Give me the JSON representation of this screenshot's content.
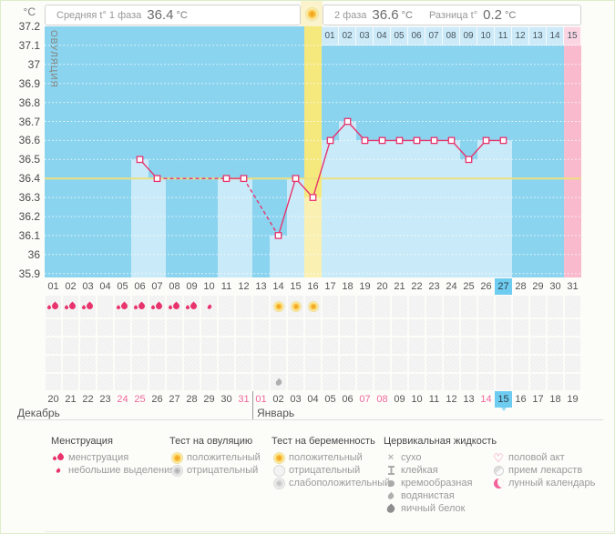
{
  "header": {
    "unit": "°C",
    "phase1": {
      "label": "Средняя t° 1 фаза",
      "value": "36.4",
      "unit": "°C"
    },
    "phase2": {
      "label": "2 фаза",
      "value": "36.6",
      "unit": "°C"
    },
    "diff": {
      "label": "Разница t°",
      "value": "0.2",
      "unit": "°C"
    },
    "ovulation_icon": "ovulation-positive-icon"
  },
  "chart_data": {
    "type": "line",
    "title": "Basal body temperature cycle chart",
    "ylabel": "°C",
    "ylim": [
      35.9,
      37.2
    ],
    "ytick_step": 0.1,
    "yticks": [
      "37.2",
      "37.1",
      "37",
      "36.9",
      "36.8",
      "36.7",
      "36.6",
      "36.5",
      "36.4",
      "36.3",
      "36.2",
      "36.1",
      "36",
      "35.9"
    ],
    "days": [
      "01",
      "02",
      "03",
      "04",
      "05",
      "06",
      "07",
      "08",
      "09",
      "10",
      "11",
      "12",
      "13",
      "14",
      "15",
      "16",
      "17",
      "18",
      "19",
      "20",
      "21",
      "22",
      "23",
      "24",
      "25",
      "26",
      "27",
      "28",
      "29",
      "30",
      "31"
    ],
    "current_cycle_day": 27,
    "ovulation_day": 16,
    "ovulation_label": "ОВУЛЯЦИЯ",
    "expected_period_day": 31,
    "coverline_temp": 36.4,
    "avg_phase1_temp": 36.4,
    "avg_phase2_temp": 36.6,
    "temp_difference": 0.2,
    "dpo_row": {
      "labels": [
        "01",
        "02",
        "03",
        "04",
        "05",
        "06",
        "07",
        "08",
        "09",
        "10",
        "11",
        "12",
        "13",
        "14",
        "15"
      ],
      "period_forecast_label": "15"
    },
    "temps": [
      {
        "day": 6,
        "t": 36.5
      },
      {
        "day": 7,
        "t": 36.4
      },
      {
        "day": 11,
        "t": 36.4
      },
      {
        "day": 12,
        "t": 36.4
      },
      {
        "day": 14,
        "t": 36.1
      },
      {
        "day": 15,
        "t": 36.4
      },
      {
        "day": 16,
        "t": 36.3
      },
      {
        "day": 17,
        "t": 36.6
      },
      {
        "day": 18,
        "t": 36.7
      },
      {
        "day": 19,
        "t": 36.6
      },
      {
        "day": 20,
        "t": 36.6
      },
      {
        "day": 21,
        "t": 36.6
      },
      {
        "day": 22,
        "t": 36.6
      },
      {
        "day": 23,
        "t": 36.6
      },
      {
        "day": 24,
        "t": 36.6
      },
      {
        "day": 25,
        "t": 36.5
      },
      {
        "day": 26,
        "t": 36.6
      },
      {
        "day": 27,
        "t": 36.6
      }
    ],
    "missed_measurement_gaps": [
      [
        7,
        11
      ],
      [
        12,
        14
      ]
    ],
    "colors": {
      "chart_bg": "#8BD4EF",
      "measured_day_fill": "#C9EAF8",
      "ovulation_column": "#F5E87D",
      "ovulation_column_light": "#F9F0B2",
      "period_forecast_column": "#F9BACE",
      "dpo_cell": "#CDEAF8",
      "dpo_period_cell": "#FBD5E2",
      "coverline": "#EDE07F",
      "temp_line": "#E8336D",
      "current_day_bg": "#6FCCF1",
      "weekend_red": "#F0679E"
    }
  },
  "events": {
    "menstruation_days": [
      1,
      2,
      3,
      5,
      6,
      7,
      8,
      9
    ],
    "spotting_days": [
      10
    ],
    "ovulation_test_positive_days": [
      14,
      15,
      16
    ],
    "watery_fluid_days": [
      14
    ]
  },
  "calendar": {
    "months": [
      {
        "name": "Декабрь",
        "start": 0
      },
      {
        "name": "Январь",
        "start": 12
      }
    ],
    "cells": [
      {
        "label": "20"
      },
      {
        "label": "21"
      },
      {
        "label": "22"
      },
      {
        "label": "23"
      },
      {
        "label": "24",
        "red": true
      },
      {
        "label": "25",
        "red": true
      },
      {
        "label": "26"
      },
      {
        "label": "27"
      },
      {
        "label": "28"
      },
      {
        "label": "29"
      },
      {
        "label": "30"
      },
      {
        "label": "31",
        "red": true
      },
      {
        "label": "01",
        "red": true
      },
      {
        "label": "02"
      },
      {
        "label": "03"
      },
      {
        "label": "04"
      },
      {
        "label": "05"
      },
      {
        "label": "06"
      },
      {
        "label": "07",
        "red": true
      },
      {
        "label": "08",
        "red": true
      },
      {
        "label": "09"
      },
      {
        "label": "10"
      },
      {
        "label": "11"
      },
      {
        "label": "12"
      },
      {
        "label": "13"
      },
      {
        "label": "14",
        "red": true
      },
      {
        "label": "15",
        "current": true
      },
      {
        "label": "16"
      },
      {
        "label": "17"
      },
      {
        "label": "18"
      },
      {
        "label": "19"
      }
    ]
  },
  "legend": {
    "columns": [
      {
        "title": "Менструация",
        "items": [
          {
            "icon": "menstruation-icon",
            "label": "менструация"
          },
          {
            "icon": "spotting-icon",
            "label": "небольшие выделения"
          }
        ]
      },
      {
        "title": "Тест на овуляцию",
        "items": [
          {
            "icon": "ovulation-test-positive-icon",
            "label": "положительный"
          },
          {
            "icon": "ovulation-test-negative-icon",
            "label": "отрицательный"
          }
        ]
      },
      {
        "title": "Тест на беременность",
        "items": [
          {
            "icon": "pregnancy-test-positive-icon",
            "label": "положительный"
          },
          {
            "icon": "pregnancy-test-negative-icon",
            "label": "отрицательный"
          },
          {
            "icon": "pregnancy-test-weak-positive-icon",
            "label": "слабоположительный"
          }
        ]
      },
      {
        "title": "Цервикальная жидкость",
        "items": [
          {
            "icon": "dry-icon",
            "label": "сухо"
          },
          {
            "icon": "sticky-icon",
            "label": "клейкая"
          },
          {
            "icon": "creamy-icon",
            "label": "кремообразная"
          },
          {
            "icon": "watery-icon",
            "label": "водянистая"
          },
          {
            "icon": "eggwhite-icon",
            "label": "яичный белок"
          }
        ]
      },
      {
        "title": "",
        "items": [
          {
            "icon": "intercourse-icon",
            "label": "половой акт"
          },
          {
            "icon": "medication-icon",
            "label": "прием лекарств"
          },
          {
            "icon": "lunar-calendar-icon",
            "label": "лунный календарь"
          }
        ]
      }
    ]
  }
}
